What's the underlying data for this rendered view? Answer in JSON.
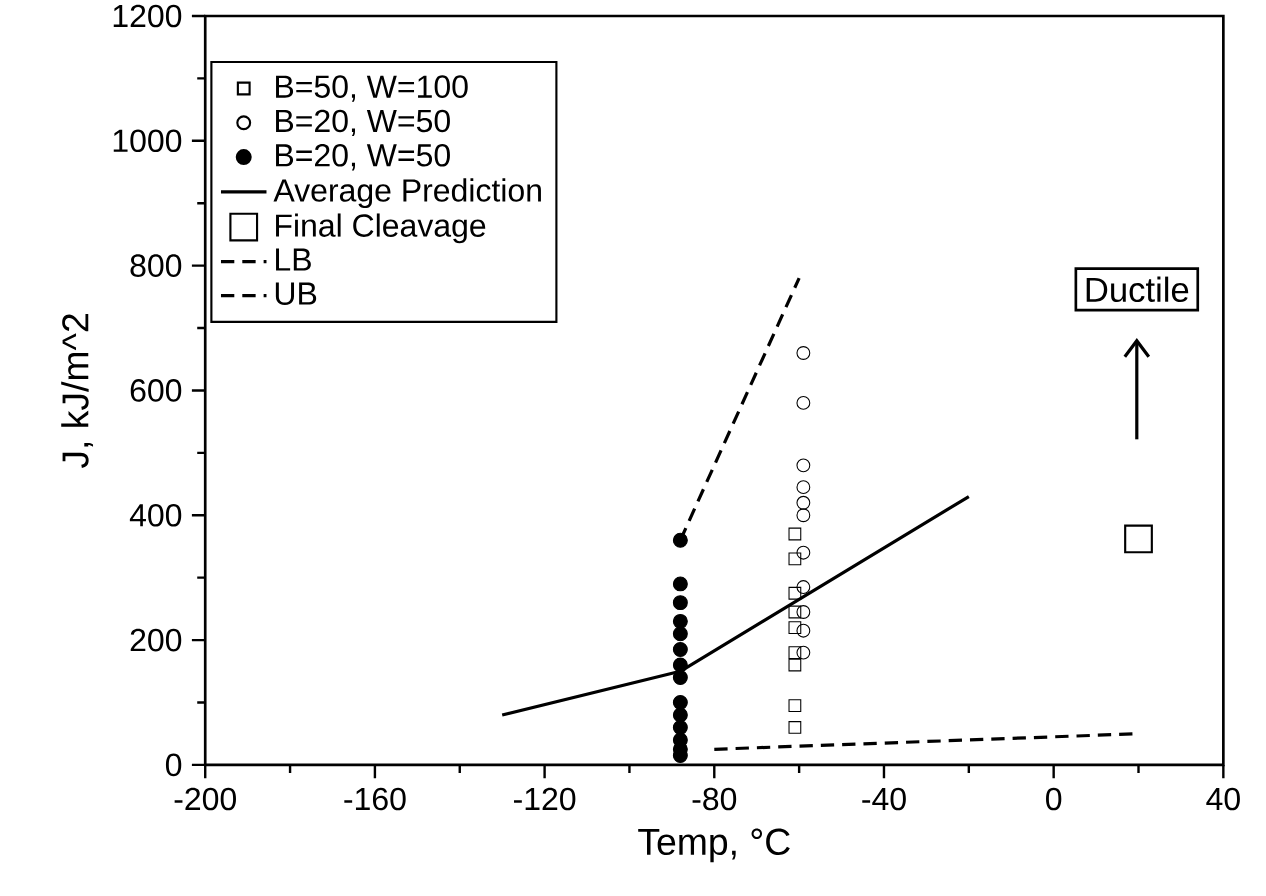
{
  "chart_data": {
    "type": "scatter",
    "xlabel": "Temp, °C",
    "ylabel": "J,  kJ/m^2",
    "xlim": [
      -200,
      40
    ],
    "xticks": [
      -200,
      -160,
      -120,
      -80,
      -40,
      0,
      40
    ],
    "ylim": [
      0,
      1200
    ],
    "yticks": [
      0,
      200,
      400,
      600,
      800,
      1000,
      1200
    ],
    "grid": false,
    "legend": "top left",
    "series": [
      {
        "name": "B=50, W=100",
        "marker": "square",
        "color": "#000000",
        "x": [
          -61,
          -61,
          -61,
          -61,
          -61,
          -61,
          -61,
          -61,
          -61
        ],
        "values": [
          370,
          330,
          275,
          245,
          220,
          180,
          160,
          95,
          60
        ]
      },
      {
        "name": "B=20, W=50",
        "marker": "circle",
        "color": "#000000",
        "x": [
          -59,
          -59,
          -59,
          -59,
          -59,
          -59,
          -59,
          -59,
          -59,
          -59,
          -59
        ],
        "values": [
          660,
          580,
          480,
          445,
          420,
          400,
          340,
          285,
          245,
          215,
          180
        ]
      },
      {
        "name": "B=20, W=50",
        "marker": "filled circle",
        "color": "#000000",
        "x": [
          -88,
          -88,
          -88,
          -88,
          -88,
          -88,
          -88,
          -88,
          -88,
          -88,
          -88,
          -88,
          -88,
          -88
        ],
        "values": [
          360,
          290,
          260,
          230,
          210,
          185,
          160,
          140,
          100,
          80,
          60,
          40,
          25,
          15
        ]
      },
      {
        "name": "Average Prediction",
        "type": "line",
        "marker": "none",
        "line_style": "solid",
        "color": "#000000",
        "x": [
          -130,
          -88,
          -20
        ],
        "values": [
          80,
          150,
          430
        ]
      },
      {
        "name": "Final Cleavage",
        "marker": "square",
        "color": "#000000",
        "x": [
          20
        ],
        "values": [
          362
        ]
      },
      {
        "name": "LB",
        "type": "line",
        "marker": "none",
        "line_style": "dashed",
        "color": "#000000",
        "x": [
          -80,
          20
        ],
        "values": [
          25,
          50
        ]
      },
      {
        "name": "UB",
        "type": "line",
        "marker": "none",
        "line_style": "dashed",
        "color": "#000000",
        "x": [
          -88,
          -60
        ],
        "values": [
          360,
          780
        ]
      }
    ],
    "annotations": [
      "Ductile"
    ]
  }
}
